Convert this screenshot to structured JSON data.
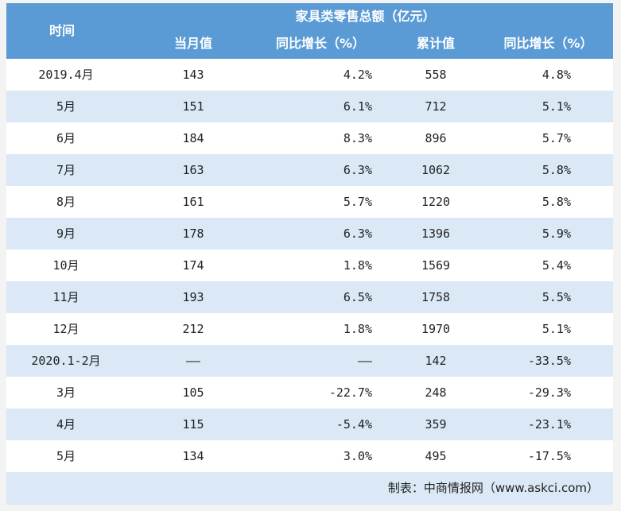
{
  "header": {
    "time_label": "时间",
    "group_label": "家具类零售总额（亿元）",
    "columns": [
      "当月值",
      "同比增长（%）",
      "累计值",
      "同比增长（%）"
    ]
  },
  "rows": [
    {
      "time": "2019.4月",
      "month_value": "143",
      "month_yoy": "4.2%",
      "cumulative": "558",
      "cumulative_yoy": "4.8%"
    },
    {
      "time": "5月",
      "month_value": "151",
      "month_yoy": "6.1%",
      "cumulative": "712",
      "cumulative_yoy": "5.1%"
    },
    {
      "time": "6月",
      "month_value": "184",
      "month_yoy": "8.3%",
      "cumulative": "896",
      "cumulative_yoy": "5.7%"
    },
    {
      "time": "7月",
      "month_value": "163",
      "month_yoy": "6.3%",
      "cumulative": "1062",
      "cumulative_yoy": "5.8%"
    },
    {
      "time": "8月",
      "month_value": "161",
      "month_yoy": "5.7%",
      "cumulative": "1220",
      "cumulative_yoy": "5.8%"
    },
    {
      "time": "9月",
      "month_value": "178",
      "month_yoy": "6.3%",
      "cumulative": "1396",
      "cumulative_yoy": "5.9%"
    },
    {
      "time": "10月",
      "month_value": "174",
      "month_yoy": "1.8%",
      "cumulative": "1569",
      "cumulative_yoy": "5.4%"
    },
    {
      "time": "11月",
      "month_value": "193",
      "month_yoy": "6.5%",
      "cumulative": "1758",
      "cumulative_yoy": "5.5%"
    },
    {
      "time": "12月",
      "month_value": "212",
      "month_yoy": "1.8%",
      "cumulative": "1970",
      "cumulative_yoy": "5.1%"
    },
    {
      "time": "2020.1-2月",
      "month_value": "——",
      "month_yoy": "——",
      "cumulative": "142",
      "cumulative_yoy": "-33.5%"
    },
    {
      "time": "3月",
      "month_value": "105",
      "month_yoy": "-22.7%",
      "cumulative": "248",
      "cumulative_yoy": "-29.3%"
    },
    {
      "time": "4月",
      "month_value": "115",
      "month_yoy": "-5.4%",
      "cumulative": "359",
      "cumulative_yoy": "-23.1%"
    },
    {
      "time": "5月",
      "month_value": "134",
      "month_yoy": "3.0%",
      "cumulative": "495",
      "cumulative_yoy": "-17.5%"
    }
  ],
  "footer": "制表：中商情报网（www.askci.com）",
  "colors": {
    "header_bg": "#5b9bd5",
    "alt_row_bg": "#dbe9f7"
  }
}
